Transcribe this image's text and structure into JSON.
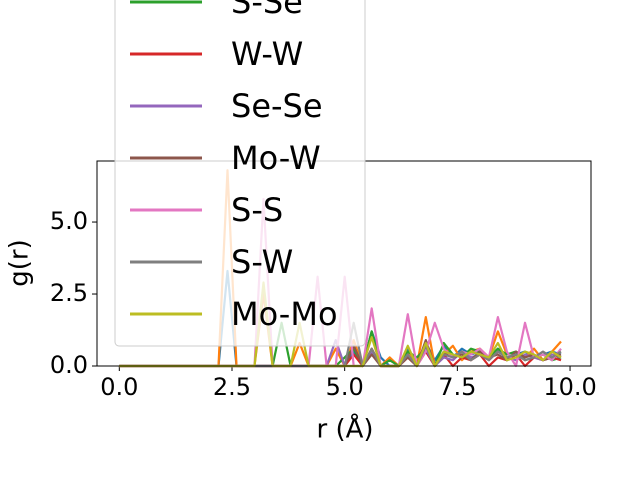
{
  "chart_data": {
    "type": "line",
    "xlabel": "r (Å)",
    "ylabel": "g(r)",
    "x": [
      0,
      0.2,
      0.4,
      0.6,
      0.8,
      1.0,
      1.2,
      1.4,
      1.6,
      1.8,
      2.0,
      2.2,
      2.4,
      2.6,
      2.8,
      3.0,
      3.2,
      3.4,
      3.6,
      3.8,
      4.0,
      4.2,
      4.4,
      4.6,
      4.8,
      5.0,
      5.2,
      5.4,
      5.6,
      5.8,
      6.0,
      6.2,
      6.4,
      6.6,
      6.8,
      7.0,
      7.2,
      7.4,
      7.6,
      7.8,
      8.0,
      8.2,
      8.4,
      8.6,
      8.8,
      9.0,
      9.2,
      9.4,
      9.6,
      9.8
    ],
    "series": [
      {
        "color": "#1f77b4",
        "values": [
          0,
          0,
          0,
          0,
          0,
          0,
          0,
          0,
          0,
          0,
          0,
          0,
          3.3,
          0,
          0,
          0,
          0,
          0,
          0,
          0,
          0,
          0,
          0,
          0,
          0,
          0,
          0.5,
          0,
          1.2,
          0.3,
          0,
          0,
          0.6,
          0,
          0.8,
          0.2,
          0.7,
          0.3,
          0.6,
          0.4,
          0.5,
          0.3,
          0.6,
          0.2,
          0.4,
          0.5,
          0.3,
          0.4,
          0.5,
          0.4
        ]
      },
      {
        "color": "#ff7f0e",
        "values": [
          0,
          0,
          0,
          0,
          0,
          0,
          0,
          0,
          0,
          0,
          0,
          0,
          6.8,
          0,
          0,
          0,
          2.5,
          0,
          0,
          0,
          0.8,
          0,
          0,
          0,
          0.6,
          0,
          0.9,
          0,
          0.6,
          0,
          0.3,
          0,
          0.5,
          0,
          1.7,
          0,
          0.4,
          0.7,
          0.2,
          0.5,
          0.6,
          0.3,
          1.2,
          0.4,
          0.5,
          0.3,
          0.6,
          0.2,
          0.5,
          0.85
        ]
      },
      {
        "name": "S-Se",
        "color": "#2ca02c",
        "values": [
          0,
          0,
          0,
          0,
          0,
          0,
          0,
          0,
          0,
          0,
          0,
          0,
          0,
          0,
          0,
          0,
          0,
          0,
          1.5,
          0,
          0,
          0,
          0,
          0,
          0,
          0.3,
          0.6,
          0,
          1.2,
          0,
          0.2,
          0,
          0.5,
          0.3,
          0.6,
          0,
          0.8,
          0.4,
          0.3,
          0.6,
          0.5,
          0.3,
          0.6,
          0.4,
          0.5,
          0.2,
          0.3,
          0.4,
          0.2,
          0.3
        ]
      },
      {
        "name": "W-W",
        "color": "#d62728",
        "values": [
          0,
          0,
          0,
          0,
          0,
          0,
          0,
          0,
          0,
          0,
          0,
          0,
          0,
          0,
          0,
          0,
          0,
          0,
          0,
          0,
          0,
          0,
          0,
          0,
          0,
          0,
          0.4,
          0,
          0.6,
          0,
          0,
          0,
          0.3,
          0,
          0.5,
          0,
          0.4,
          0,
          0.3,
          0.2,
          0.4,
          0,
          0.3,
          0.2,
          0.4,
          0,
          0.3,
          0.2,
          0.3,
          0.2
        ]
      },
      {
        "name": "Se-Se",
        "color": "#9467bd",
        "values": [
          0,
          0,
          0,
          0,
          0,
          0,
          0,
          0,
          0,
          0,
          0,
          0,
          0,
          0,
          0,
          0,
          0,
          0,
          0,
          0,
          0,
          0,
          0,
          0,
          0.9,
          0,
          0,
          0,
          0.5,
          0,
          0,
          0,
          0.4,
          0,
          0.6,
          0,
          0.3,
          0.2,
          0.5,
          0.3,
          0.4,
          0.2,
          0.5,
          0.3,
          0.2,
          0.4,
          0.3,
          0.2,
          0.4,
          0.3
        ]
      },
      {
        "name": "Mo-W",
        "color": "#8c564b",
        "values": [
          0,
          0,
          0,
          0,
          0,
          0,
          0,
          0,
          0,
          0,
          0,
          0,
          0,
          0,
          0,
          0,
          0,
          0,
          0,
          0,
          0,
          0,
          0,
          0,
          0,
          0,
          0.7,
          0,
          0.4,
          0,
          0,
          0,
          0.3,
          0,
          0.9,
          0,
          0.5,
          0.3,
          0.4,
          0.2,
          0.5,
          0.3,
          0.4,
          0.2,
          0.5,
          0.3,
          0.4,
          0.2,
          0.3,
          0.4
        ]
      },
      {
        "name": "S-S",
        "color": "#e377c2",
        "values": [
          0,
          0,
          0,
          0,
          0,
          0,
          0,
          0,
          0,
          0,
          0,
          0,
          0,
          0,
          0,
          0,
          5.8,
          0,
          0,
          0,
          0,
          0,
          3.1,
          0,
          0,
          3.1,
          0,
          0,
          2.0,
          0,
          0,
          0,
          1.8,
          0,
          0.5,
          1.5,
          0.6,
          0.3,
          0.5,
          0.4,
          0.6,
          0.3,
          1.7,
          0.5,
          0,
          1.5,
          0.3,
          0.4,
          0.2,
          0.6
        ]
      },
      {
        "name": "S-W",
        "color": "#7f7f7f",
        "values": [
          0,
          0,
          0,
          0,
          0,
          0,
          0,
          0,
          0,
          0,
          0,
          0,
          0,
          0,
          0,
          0,
          0,
          0,
          0,
          0,
          0,
          0,
          0,
          0,
          0,
          0,
          1.5,
          0,
          0.6,
          0,
          0,
          0,
          0.4,
          0,
          0.7,
          0,
          0.4,
          0.3,
          0.5,
          0.2,
          0.4,
          0.2,
          0.5,
          0.3,
          0.4,
          0.2,
          0.3,
          0.5,
          0.3,
          0.5
        ]
      },
      {
        "name": "Mo-Mo",
        "color": "#bcbd22",
        "values": [
          0,
          0,
          0,
          0,
          0,
          0,
          0,
          0,
          0,
          0,
          0,
          0,
          0,
          0,
          0,
          0,
          2.9,
          0,
          0,
          0,
          1.5,
          0,
          0,
          0,
          0,
          0,
          0,
          0,
          1.0,
          0,
          0,
          0,
          0.7,
          0,
          0.8,
          0,
          0.5,
          0.4,
          0.3,
          0.5,
          0.4,
          0.3,
          0.8,
          0.2,
          0.3,
          0.5,
          0.4,
          0.2,
          0.5,
          0.3
        ]
      }
    ],
    "xlim": [
      -0.495,
      10.465
    ],
    "xticks": [
      {
        "value": 0,
        "label": "0.0"
      },
      {
        "value": 2.5,
        "label": "2.5"
      },
      {
        "value": 5,
        "label": "5.0"
      },
      {
        "value": 7.5,
        "label": "7.5"
      },
      {
        "value": 10,
        "label": "10.0"
      }
    ],
    "ylim": [
      0,
      7.12
    ],
    "yticks": [
      {
        "value": 0,
        "label": "0.0"
      },
      {
        "value": 2.5,
        "label": "2.5"
      },
      {
        "value": 5,
        "label": "5.0"
      }
    ]
  }
}
